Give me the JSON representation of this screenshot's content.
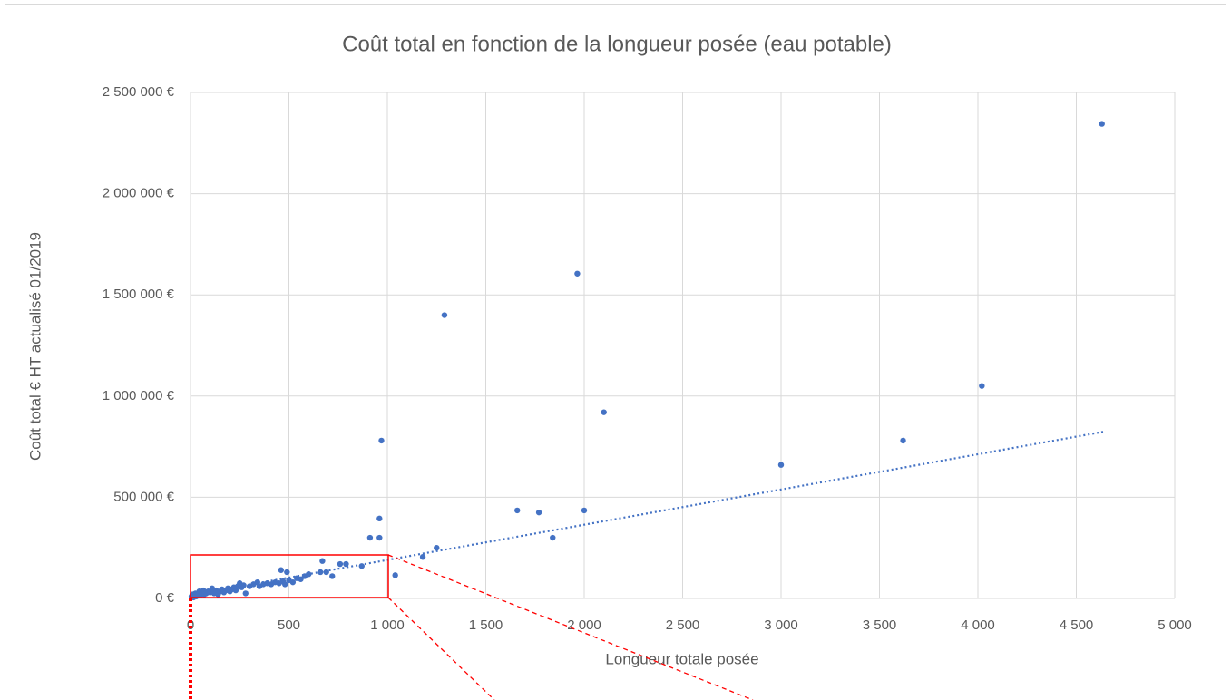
{
  "chart_data": {
    "type": "scatter",
    "title": "Coût total en fonction de la longueur posée (eau potable)",
    "xlabel": "Longueur totale posée",
    "ylabel": "Coût total € HT actualisé 01/2019",
    "color": "#4472c4",
    "x": [
      4630,
      1965,
      1290,
      4020,
      2100,
      970,
      3620,
      3000,
      1660,
      1770,
      2000,
      1840,
      960,
      912,
      960,
      1250,
      1180,
      1040,
      670,
      760,
      790,
      870,
      720,
      660,
      690,
      600,
      460,
      490,
      5,
      10,
      15,
      20,
      25,
      30,
      40,
      45,
      50,
      60,
      65,
      70,
      80,
      90,
      100,
      110,
      120,
      130,
      140,
      150,
      160,
      170,
      180,
      190,
      200,
      210,
      220,
      230,
      240,
      250,
      260,
      270,
      280,
      300,
      320,
      340,
      350,
      370,
      390,
      410,
      430,
      450,
      470,
      480,
      500,
      520,
      540,
      560,
      580
    ],
    "values": [
      2345000,
      1605000,
      1400000,
      1050000,
      920000,
      780000,
      780000,
      660000,
      435000,
      425000,
      435000,
      300000,
      395000,
      300000,
      300000,
      250000,
      205000,
      115000,
      185000,
      170000,
      170000,
      160000,
      110000,
      130000,
      130000,
      120000,
      140000,
      130000,
      10000,
      20000,
      5000,
      15000,
      25000,
      10000,
      20000,
      35000,
      15000,
      30000,
      40000,
      20000,
      25000,
      35000,
      30000,
      50000,
      25000,
      40000,
      20000,
      35000,
      45000,
      30000,
      40000,
      50000,
      35000,
      45000,
      55000,
      40000,
      60000,
      75000,
      55000,
      65000,
      25000,
      60000,
      70000,
      80000,
      60000,
      70000,
      75000,
      70000,
      80000,
      75000,
      85000,
      70000,
      90000,
      80000,
      100000,
      95000,
      110000
    ],
    "trendline": {
      "x": [
        0,
        4640
      ],
      "values": [
        16000,
        824000
      ],
      "color": "#4472c4"
    },
    "xlim": [
      0,
      5000
    ],
    "xticks": [
      0,
      500,
      {
        "value": 1000,
        "label": "1 000"
      },
      {
        "value": 1500,
        "label": "1 500"
      },
      {
        "value": 2000,
        "label": "2 000"
      },
      {
        "value": 2500,
        "label": "2 500"
      },
      {
        "value": 3000,
        "label": "3 000"
      },
      {
        "value": 3500,
        "label": "3 500"
      },
      {
        "value": 4000,
        "label": "4 000"
      },
      {
        "value": 4500,
        "label": "4 500"
      },
      {
        "value": 5000,
        "label": "5 000"
      }
    ],
    "ylim": [
      0,
      2500000
    ],
    "yticks": [
      {
        "value": 0,
        "label": "0 €"
      },
      {
        "value": 500000,
        "label": "500 000 €"
      },
      {
        "value": 1000000,
        "label": "1 000 000 €"
      },
      {
        "value": 1500000,
        "label": "1 500 000 €"
      },
      {
        "value": 2000000,
        "label": "2 000 000 €"
      },
      {
        "value": 2500000,
        "label": "2 500 000 €"
      }
    ],
    "grid": true
  }
}
